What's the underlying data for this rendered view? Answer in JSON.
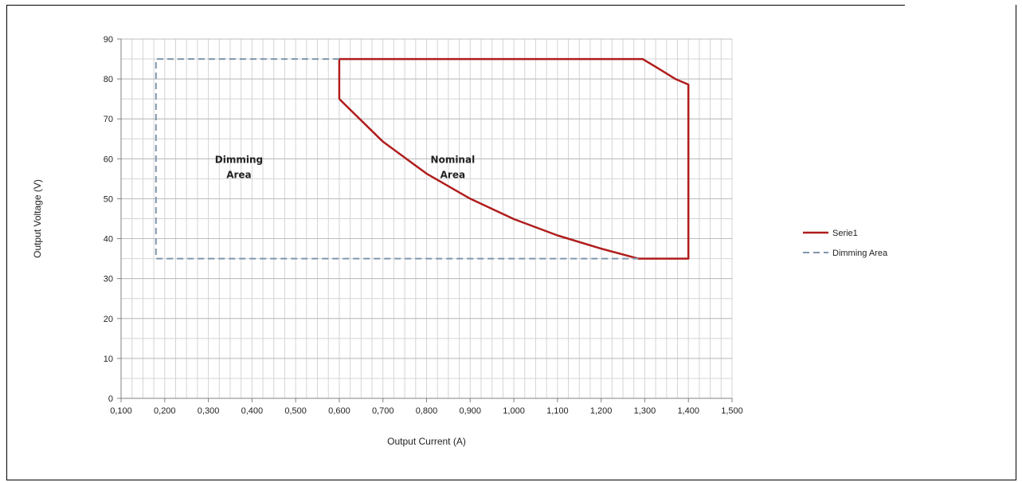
{
  "chart_data": {
    "type": "line",
    "title": "",
    "xlabel": "Output Current (A)",
    "ylabel": "Output Voltage (V)",
    "xlim": [
      0.1,
      1.5
    ],
    "ylim": [
      0,
      90
    ],
    "x_ticks": [
      "0,100",
      "0,200",
      "0,300",
      "0,400",
      "0,500",
      "0,600",
      "0,700",
      "0,800",
      "0,900",
      "1,000",
      "1,100",
      "1,200",
      "1,300",
      "1,400",
      "1,500"
    ],
    "y_ticks": [
      "0",
      "10",
      "20",
      "30",
      "40",
      "50",
      "60",
      "70",
      "80",
      "90"
    ],
    "grid": true,
    "legend_position": "right",
    "series": [
      {
        "name": "Serie1",
        "color": "#b01c1c",
        "style": "solid",
        "points": [
          [
            0.6,
            75
          ],
          [
            0.6,
            85
          ],
          [
            1.295,
            85
          ],
          [
            1.33,
            82.7
          ],
          [
            1.37,
            80
          ],
          [
            1.4,
            78.6
          ],
          [
            1.4,
            35
          ],
          [
            1.285,
            35
          ],
          [
            1.2,
            37.5
          ],
          [
            1.1,
            40.8
          ],
          [
            1.0,
            44.9
          ],
          [
            0.9,
            50.0
          ],
          [
            0.8,
            56.3
          ],
          [
            0.7,
            64.3
          ],
          [
            0.6,
            75
          ]
        ]
      },
      {
        "name": "Dimming Area",
        "color": "#7f96ad",
        "style": "dashed",
        "points": [
          [
            0.6,
            85
          ],
          [
            0.18,
            85
          ],
          [
            0.18,
            35
          ],
          [
            1.285,
            35
          ]
        ]
      }
    ],
    "annotations": [
      {
        "line1": "Dimming",
        "line2": "Area",
        "x": 0.37,
        "y": 59
      },
      {
        "line1": "Nominal",
        "line2": "Area",
        "x": 0.86,
        "y": 59
      }
    ]
  }
}
